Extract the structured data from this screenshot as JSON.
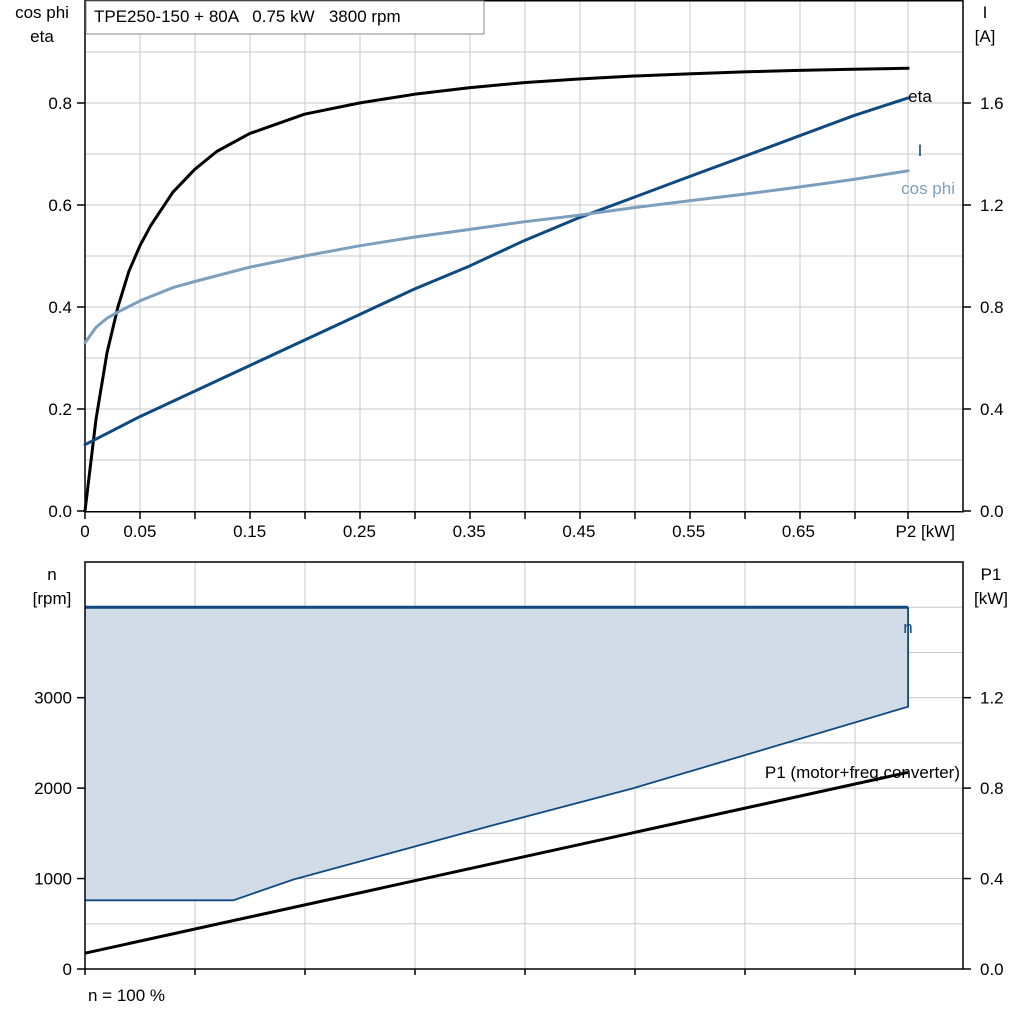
{
  "title": "TPE250-150 + 80A   0.75 kW   3800 rpm",
  "footer": "n = 100 %",
  "colors": {
    "eta": "#000000",
    "current": "#0e4a80",
    "cosphi": "#7c9fbe",
    "speed": "#0e4a80",
    "speed_fill": "#d2dce8",
    "p1": "#000000",
    "grid": "#c8c8c8"
  },
  "chart_data": [
    {
      "type": "line",
      "name": "upper",
      "x_tick_labels": [
        "0",
        "0.05",
        "0.15",
        "0.25",
        "0.35",
        "0.45",
        "0.55",
        "0.65"
      ],
      "x_tick_values": [
        0,
        0.05,
        0.15,
        0.25,
        0.35,
        0.45,
        0.55,
        0.65
      ],
      "x_unit_label": "P2 [kW]",
      "xlim": [
        0,
        0.8
      ],
      "left_axis": {
        "label_line1": "cos phi",
        "label_line2": "eta",
        "ylim": [
          0,
          1.0
        ],
        "ticks": [
          "0.0",
          "0.2",
          "0.4",
          "0.6",
          "0.8"
        ],
        "tick_values": [
          0,
          0.2,
          0.4,
          0.6,
          0.8
        ]
      },
      "right_axis": {
        "label_line1": "I",
        "label_line2": "[A]",
        "ylim": [
          0,
          2.0
        ],
        "ticks": [
          "0.0",
          "0.4",
          "0.8",
          "1.2",
          "1.6"
        ],
        "tick_values": [
          0,
          0.4,
          0.8,
          1.2,
          1.6
        ]
      },
      "grid": true,
      "series": [
        {
          "name": "eta",
          "axis": "left",
          "x": [
            0,
            0.01,
            0.02,
            0.03,
            0.04,
            0.05,
            0.06,
            0.08,
            0.1,
            0.12,
            0.15,
            0.2,
            0.25,
            0.3,
            0.35,
            0.4,
            0.45,
            0.5,
            0.55,
            0.6,
            0.65,
            0.7,
            0.75
          ],
          "y": [
            0,
            0.18,
            0.31,
            0.4,
            0.47,
            0.52,
            0.56,
            0.625,
            0.67,
            0.705,
            0.74,
            0.778,
            0.8,
            0.817,
            0.83,
            0.84,
            0.847,
            0.853,
            0.857,
            0.861,
            0.864,
            0.866,
            0.868
          ]
        },
        {
          "name": "I",
          "axis": "right",
          "x": [
            0,
            0.05,
            0.1,
            0.15,
            0.2,
            0.25,
            0.3,
            0.35,
            0.4,
            0.45,
            0.5,
            0.55,
            0.6,
            0.65,
            0.7,
            0.75
          ],
          "y": [
            0.26,
            0.37,
            0.47,
            0.57,
            0.67,
            0.77,
            0.87,
            0.96,
            1.06,
            1.15,
            1.23,
            1.31,
            1.39,
            1.47,
            1.55,
            1.62
          ]
        },
        {
          "name": "cos phi",
          "axis": "left",
          "x": [
            0,
            0.01,
            0.02,
            0.03,
            0.05,
            0.08,
            0.1,
            0.15,
            0.2,
            0.25,
            0.3,
            0.35,
            0.4,
            0.45,
            0.5,
            0.55,
            0.6,
            0.65,
            0.7,
            0.75
          ],
          "y": [
            0.33,
            0.36,
            0.378,
            0.39,
            0.412,
            0.438,
            0.45,
            0.478,
            0.5,
            0.52,
            0.537,
            0.552,
            0.567,
            0.58,
            0.595,
            0.608,
            0.621,
            0.635,
            0.65,
            0.667
          ]
        }
      ],
      "series_labels": [
        "eta",
        "I",
        "cos phi"
      ]
    },
    {
      "type": "area",
      "name": "lower",
      "xlim": [
        0,
        0.8
      ],
      "left_axis": {
        "label_line1": "n",
        "label_line2": "[rpm]",
        "ylim": [
          0,
          4500
        ],
        "ticks": [
          "0",
          "1000",
          "2000",
          "3000"
        ],
        "tick_values": [
          0,
          1000,
          2000,
          3000
        ]
      },
      "right_axis": {
        "label_line1": "P1",
        "label_line2": "[kW]",
        "ylim": [
          0,
          1.8
        ],
        "ticks": [
          "0.0",
          "0.4",
          "0.8",
          "1.2"
        ],
        "tick_values": [
          0,
          0.4,
          0.8,
          1.2
        ]
      },
      "grid": true,
      "series": [
        {
          "name": "n",
          "axis": "left",
          "role": "operating-range-top",
          "x": [
            0,
            0.75
          ],
          "y": [
            4000,
            4000
          ]
        },
        {
          "name": "n-min",
          "axis": "left",
          "role": "operating-range-bottom",
          "x": [
            0,
            0.135,
            0.19,
            0.375,
            0.5,
            0.75,
            0.75
          ],
          "y": [
            760,
            760,
            990,
            1600,
            2000,
            2900,
            4000
          ]
        },
        {
          "name": "P1 (motor+freq.converter)",
          "axis": "right",
          "x": [
            0,
            0.75
          ],
          "y": [
            0.07,
            0.87
          ]
        }
      ],
      "series_labels": [
        "n",
        "P1 (motor+freq.converter)"
      ]
    }
  ]
}
